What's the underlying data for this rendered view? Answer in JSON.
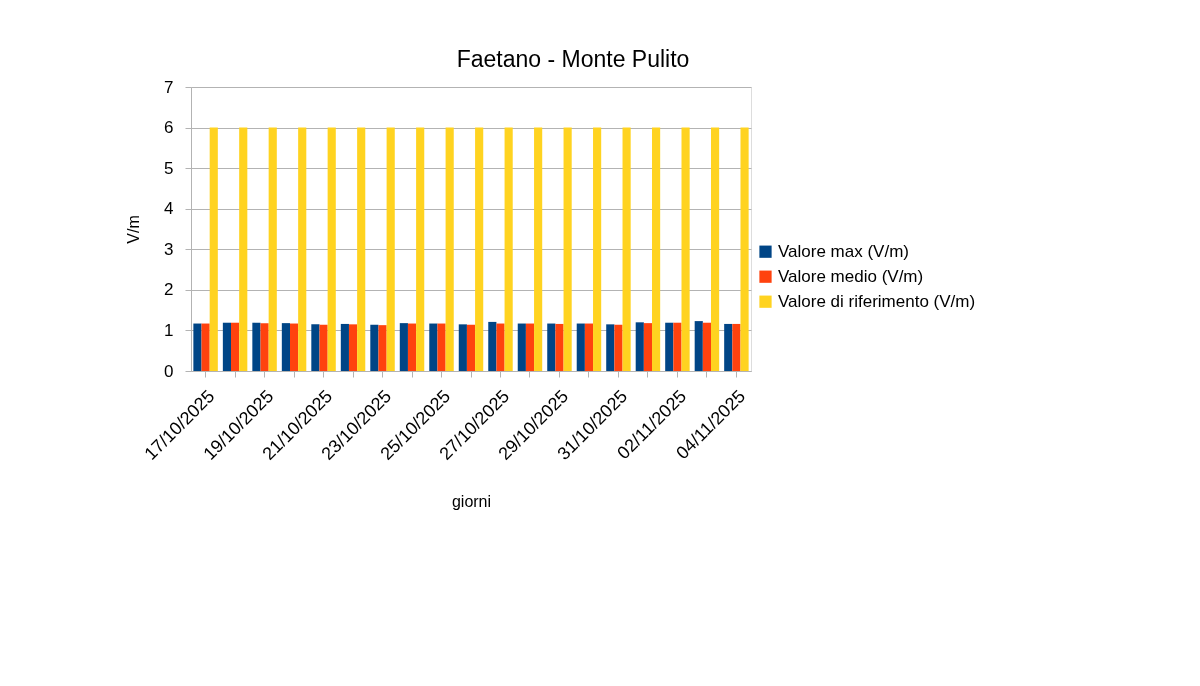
{
  "chart_data": {
    "type": "bar",
    "title": "Faetano - Monte Pulito",
    "xlabel": "giorni",
    "ylabel": "V/m",
    "categories": [
      "17/10/2025",
      null,
      "19/10/2025",
      null,
      "21/10/2025",
      null,
      "23/10/2025",
      null,
      "25/10/2025",
      null,
      "27/10/2025",
      null,
      "29/10/2025",
      null,
      "31/10/2025",
      null,
      "02/11/2025",
      null,
      "04/11/2025"
    ],
    "series": [
      {
        "name": "Valore max (V/m)",
        "color": "#004586",
        "values": [
          1.17,
          1.19,
          1.19,
          1.18,
          1.15,
          1.16,
          1.14,
          1.18,
          1.17,
          1.15,
          1.21,
          1.17,
          1.17,
          1.17,
          1.15,
          1.2,
          1.19,
          1.23,
          1.16
        ]
      },
      {
        "name": "Valore medio (V/m)",
        "color": "#ff420e",
        "values": [
          1.17,
          1.19,
          1.18,
          1.17,
          1.14,
          1.15,
          1.13,
          1.17,
          1.17,
          1.14,
          1.17,
          1.17,
          1.16,
          1.17,
          1.14,
          1.18,
          1.19,
          1.19,
          1.16
        ]
      },
      {
        "name": "Valore di riferimento (V/m)",
        "color": "#ffd320",
        "values": [
          6,
          6,
          6,
          6,
          6,
          6,
          6,
          6,
          6,
          6,
          6,
          6,
          6,
          6,
          6,
          6,
          6,
          6,
          6
        ]
      }
    ],
    "ylim": [
      0,
      7
    ],
    "yticks": [
      0,
      1,
      2,
      3,
      4,
      5,
      6,
      7
    ],
    "grid": "y",
    "legend": "right"
  }
}
